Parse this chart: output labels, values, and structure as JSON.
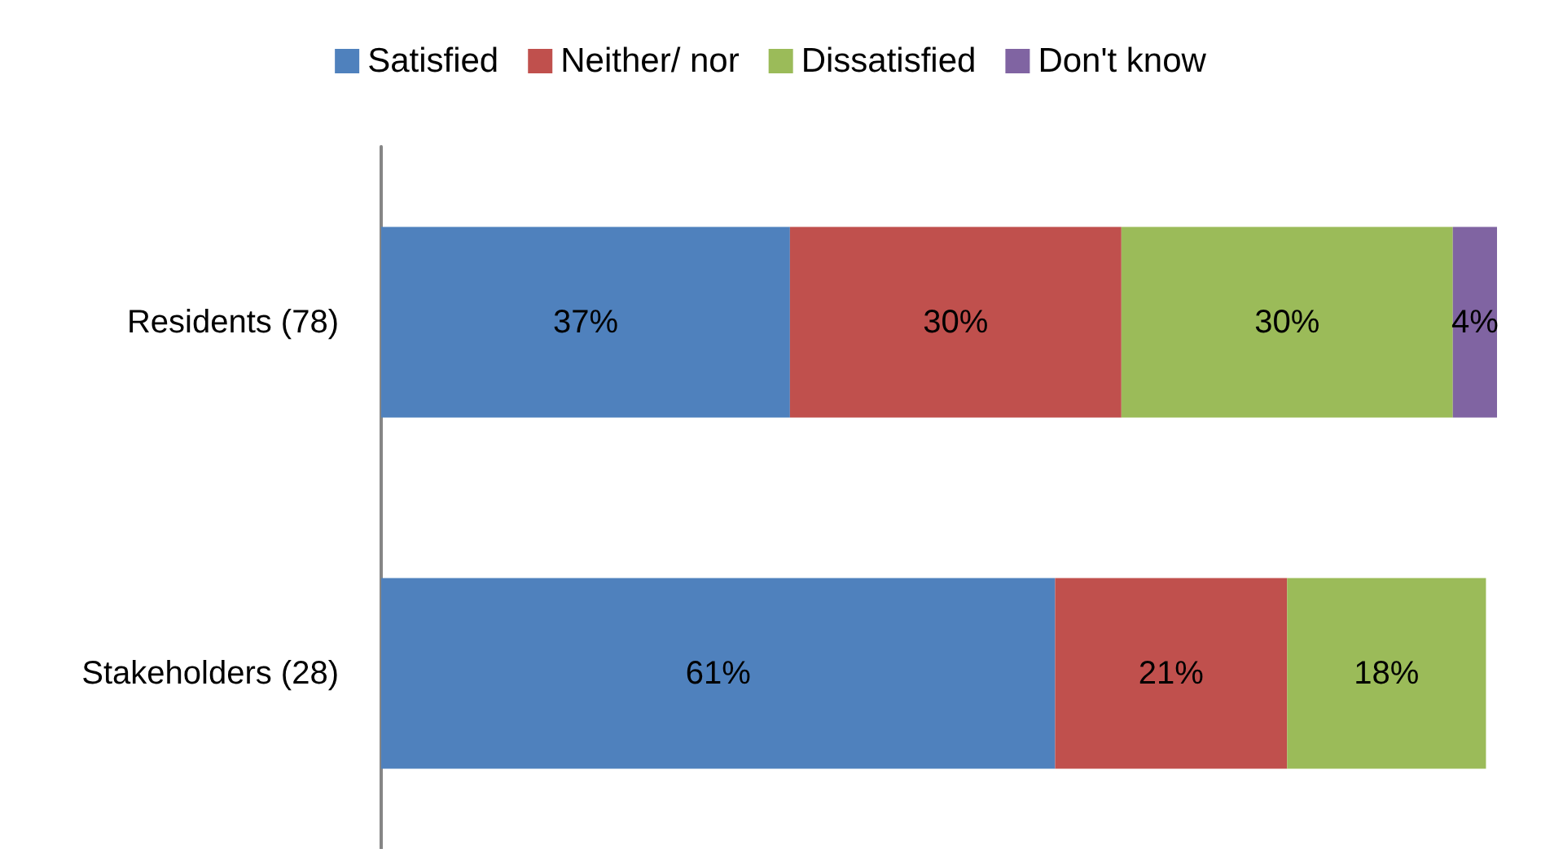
{
  "chart_data": {
    "type": "bar",
    "orientation": "horizontal",
    "stacked": true,
    "categories": [
      "Residents (78)",
      "Stakeholders (28)"
    ],
    "series": [
      {
        "name": "Satisfied",
        "color": "#4f81bd",
        "values": [
          37,
          61
        ],
        "value_labels": [
          "37%",
          "61%"
        ]
      },
      {
        "name": "Neither/ nor",
        "color": "#c0504d",
        "values": [
          30,
          21
        ],
        "value_labels": [
          "30%",
          "21%"
        ]
      },
      {
        "name": "Dissatisfied",
        "color": "#9bbb59",
        "values": [
          30,
          18
        ],
        "value_labels": [
          "30%",
          "18%"
        ]
      },
      {
        "name": "Don't know",
        "color": "#8064a2",
        "values": [
          4,
          null
        ],
        "value_labels": [
          "4%",
          null
        ]
      }
    ],
    "legend": "top",
    "tick_labels": "y"
  }
}
